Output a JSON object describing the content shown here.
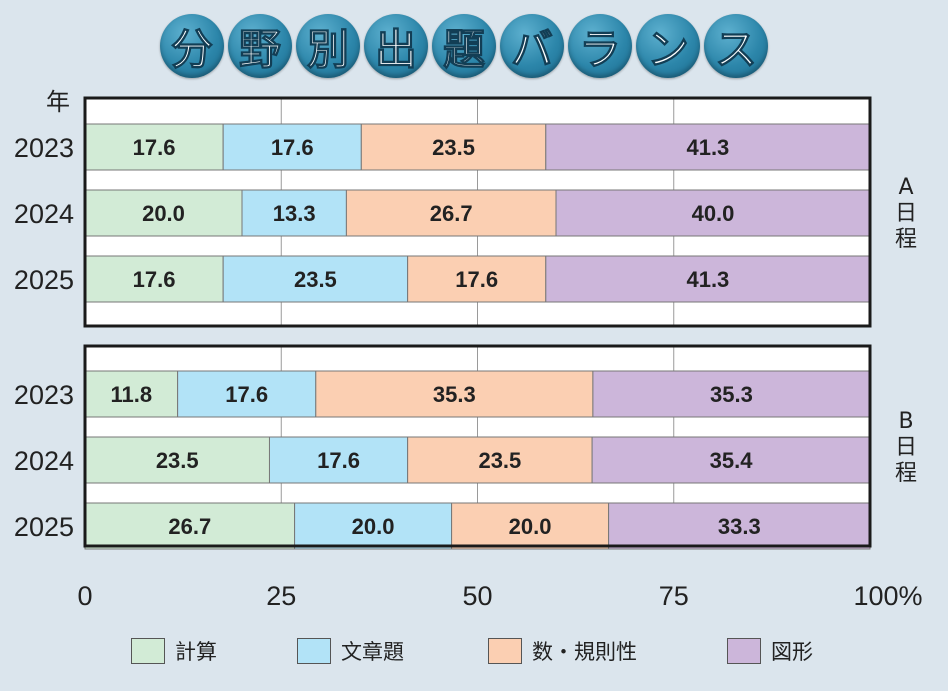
{
  "title_chars": [
    "分",
    "野",
    "別",
    "出",
    "題",
    "バ",
    "ラ",
    "ン",
    "ス"
  ],
  "chart_data": {
    "type": "bar",
    "orientation": "horizontal-stacked-percent",
    "title": "分野別出題バランス",
    "year_axis_label": "年",
    "x_ticks": [
      "0",
      "25",
      "50",
      "75",
      "100%"
    ],
    "xlim": [
      0,
      100
    ],
    "categories": [
      "計算",
      "文章題",
      "数・規則性",
      "図形"
    ],
    "colors": [
      "#d2ebd6",
      "#b2e3f7",
      "#fbcfb2",
      "#ccb6da"
    ],
    "panels": [
      {
        "name": "A日程",
        "rows": [
          {
            "year": "2023",
            "values": [
              17.6,
              17.6,
              23.5,
              41.3
            ]
          },
          {
            "year": "2024",
            "values": [
              20.0,
              13.3,
              26.7,
              40.0
            ]
          },
          {
            "year": "2025",
            "values": [
              17.6,
              23.5,
              17.6,
              41.3
            ]
          }
        ]
      },
      {
        "name": "B日程",
        "rows": [
          {
            "year": "2023",
            "values": [
              11.8,
              17.6,
              35.3,
              35.3
            ]
          },
          {
            "year": "2024",
            "values": [
              23.5,
              17.6,
              23.5,
              35.4
            ]
          },
          {
            "year": "2025",
            "values": [
              26.7,
              20.0,
              20.0,
              33.3
            ]
          }
        ]
      }
    ]
  }
}
